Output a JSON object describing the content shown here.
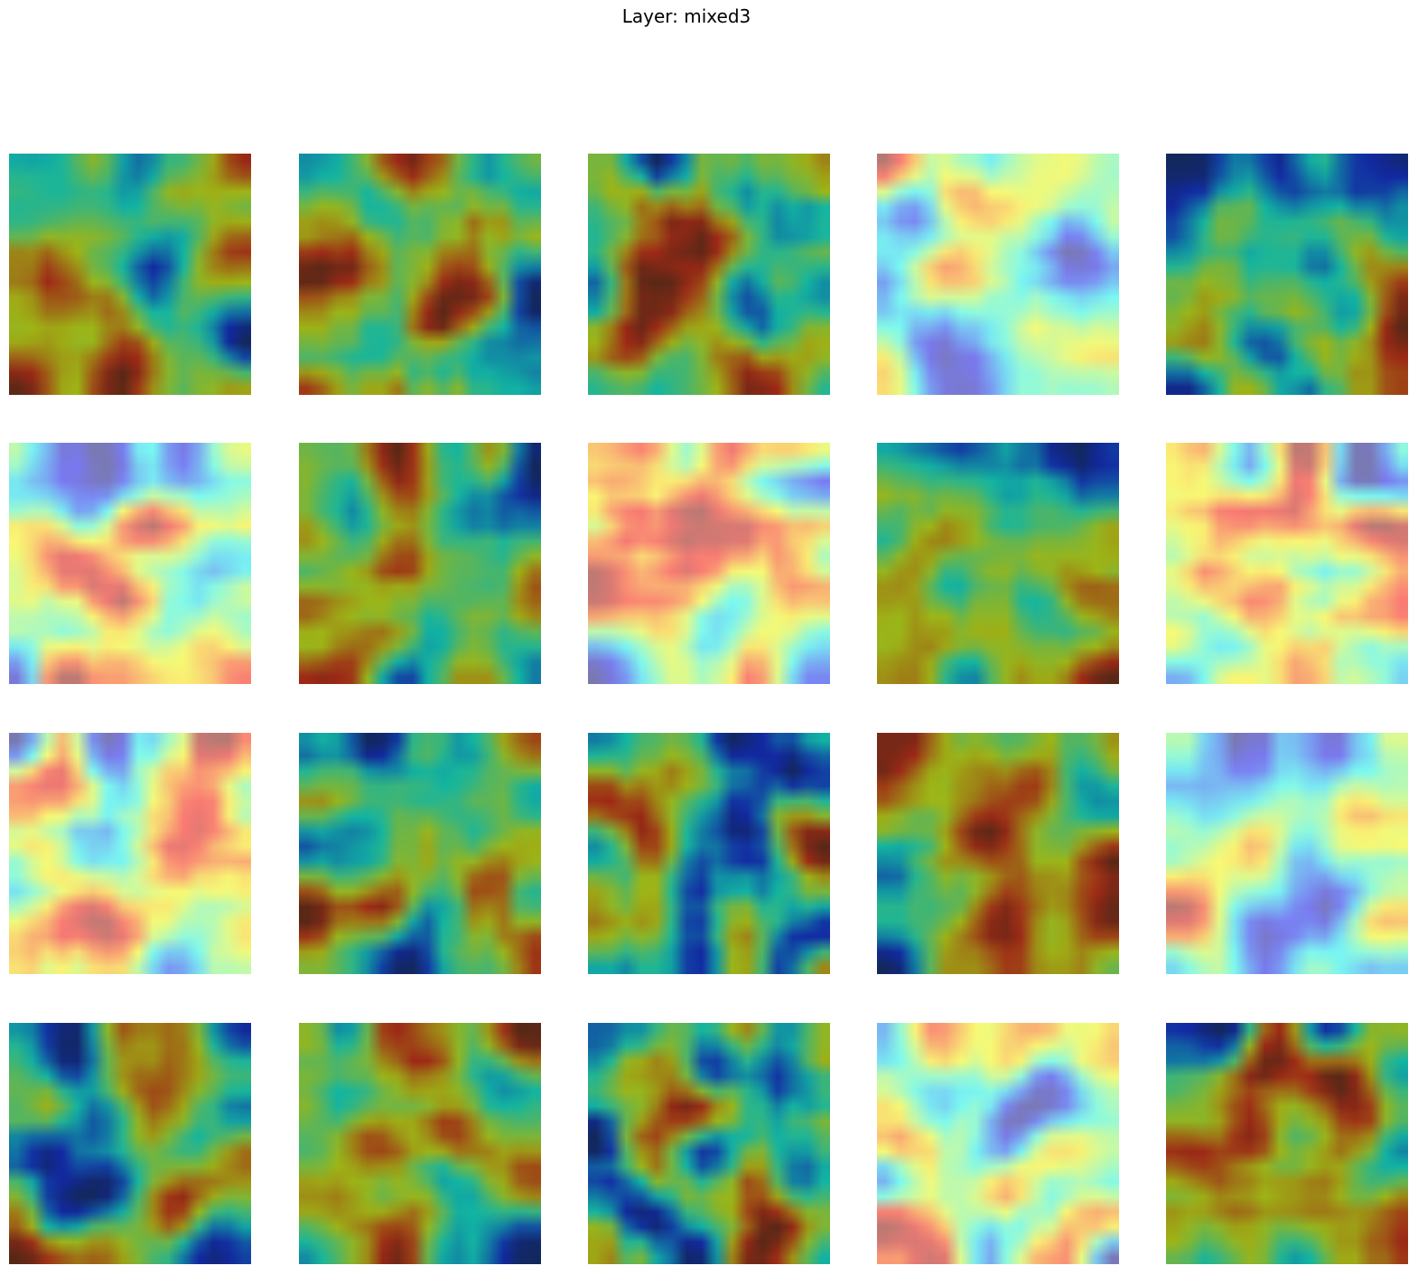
{
  "figure": {
    "title": "Layer: mixed3"
  },
  "grid": {
    "rows": 4,
    "columns": 5,
    "colormap": "jet",
    "tiles": [
      {
        "id": "r1c1",
        "variant": "dark",
        "seed": 11
      },
      {
        "id": "r1c2",
        "variant": "dark",
        "seed": 23
      },
      {
        "id": "r1c3",
        "variant": "dark",
        "seed": 37
      },
      {
        "id": "r1c4",
        "variant": "light",
        "seed": 41
      },
      {
        "id": "r1c5",
        "variant": "dark",
        "seed": 53
      },
      {
        "id": "r2c1",
        "variant": "light",
        "seed": 67
      },
      {
        "id": "r2c2",
        "variant": "dark",
        "seed": 71
      },
      {
        "id": "r2c3",
        "variant": "light",
        "seed": 83
      },
      {
        "id": "r2c4",
        "variant": "dark",
        "seed": 97
      },
      {
        "id": "r2c5",
        "variant": "light",
        "seed": 101
      },
      {
        "id": "r3c1",
        "variant": "light",
        "seed": 113
      },
      {
        "id": "r3c2",
        "variant": "dark",
        "seed": 127
      },
      {
        "id": "r3c3",
        "variant": "dark",
        "seed": 131
      },
      {
        "id": "r3c4",
        "variant": "dark",
        "seed": 149
      },
      {
        "id": "r3c5",
        "variant": "light",
        "seed": 157
      },
      {
        "id": "r4c1",
        "variant": "dark",
        "seed": 163
      },
      {
        "id": "r4c2",
        "variant": "dark",
        "seed": 173
      },
      {
        "id": "r4c3",
        "variant": "dark",
        "seed": 181
      },
      {
        "id": "r4c4",
        "variant": "light",
        "seed": 193
      },
      {
        "id": "r4c5",
        "variant": "dark",
        "seed": 199
      }
    ]
  }
}
